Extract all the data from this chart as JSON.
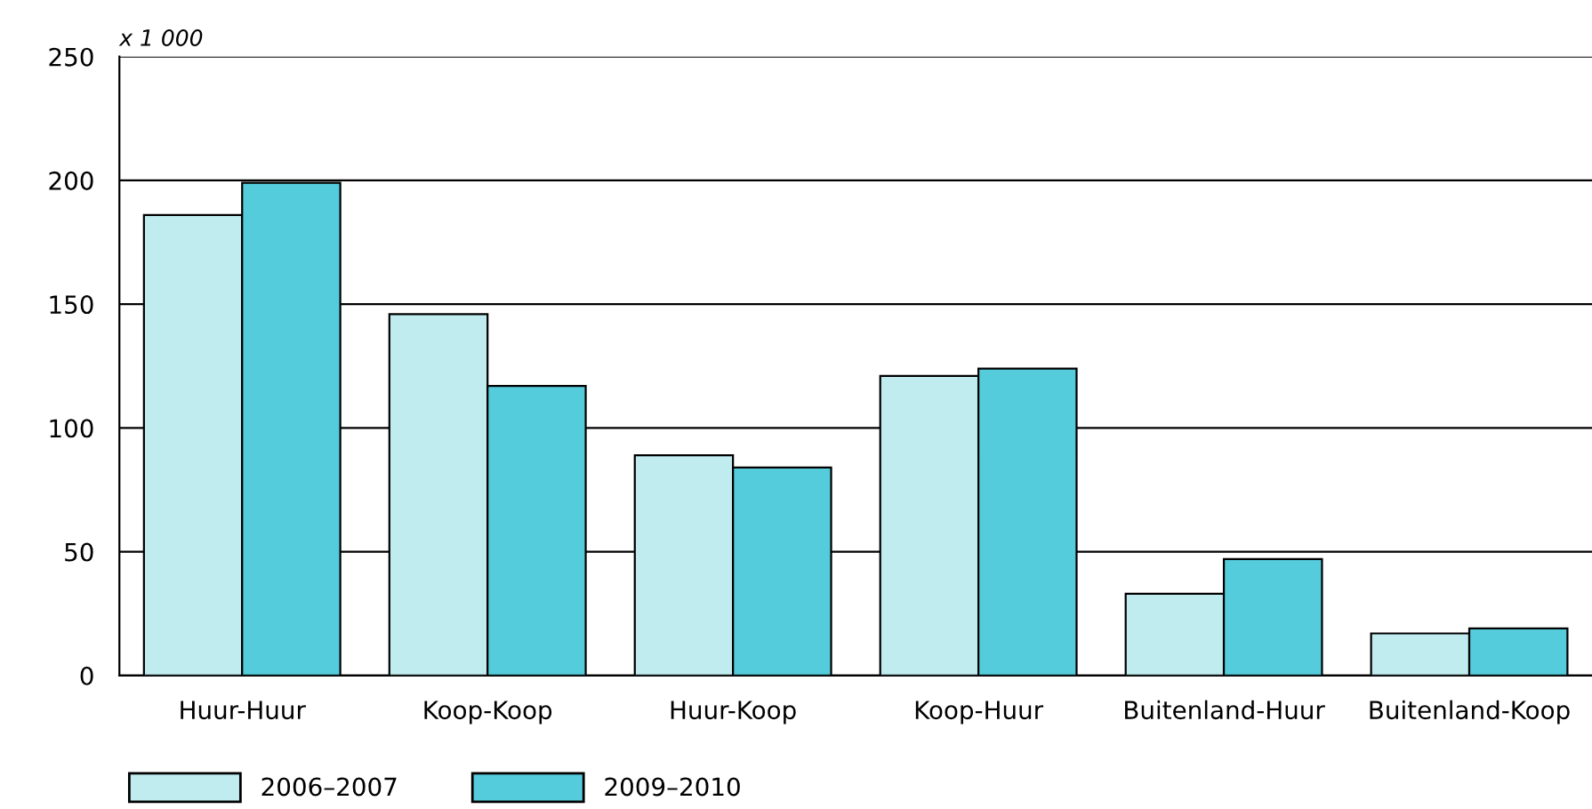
{
  "chart_data": {
    "type": "bar",
    "annotations": [
      "x 1 000"
    ],
    "categories": [
      "Huur-Huur",
      "Koop-Koop",
      "Huur-Koop",
      "Koop-Huur",
      "Buitenland-Huur",
      "Buitenland-Koop"
    ],
    "series": [
      {
        "name": "2006–2007",
        "color": "#c0ecf0",
        "values": [
          186,
          146,
          89,
          121,
          33,
          17
        ]
      },
      {
        "name": "2009–2010",
        "color": "#55ccdb",
        "values": [
          199,
          117,
          84,
          124,
          47,
          19
        ]
      }
    ],
    "ylim": [
      0,
      250
    ],
    "yticks": [
      0,
      50,
      100,
      150,
      200,
      250
    ],
    "grid": "y",
    "legend": "bottom left"
  }
}
